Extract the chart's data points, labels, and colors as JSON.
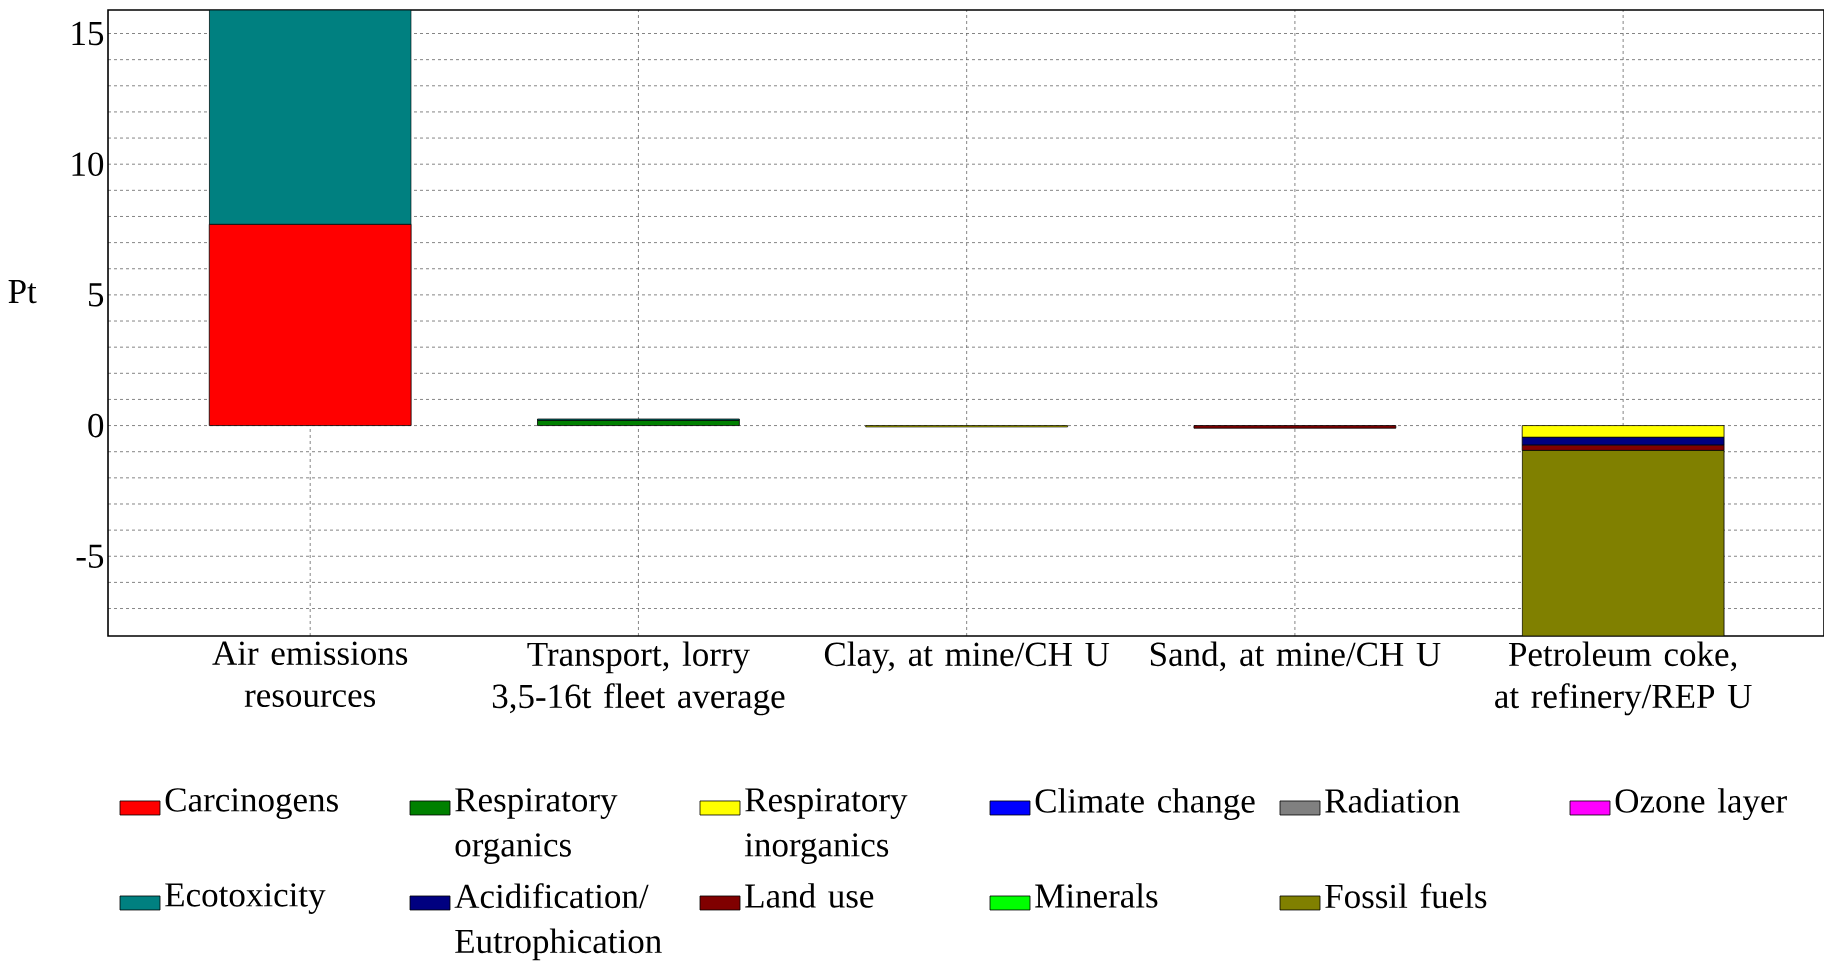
{
  "chart_data": {
    "type": "bar",
    "stacked": true,
    "ylabel": "Pt",
    "categories": [
      "Air emissions resources",
      "Transport, lorry 3,5-16t fleet average",
      "Clay, at mine/CH U",
      "Sand, at mine/CH U",
      "Petroleum coke, at refinery/REP U"
    ],
    "series": [
      {
        "name": "Carcinogens",
        "color": "#ff0000",
        "values": [
          7.7,
          null,
          null,
          null,
          null
        ]
      },
      {
        "name": "Respiratory organics",
        "color": "#008000",
        "values": [
          null,
          0.2,
          null,
          null,
          null
        ]
      },
      {
        "name": "Respiratory inorganics",
        "color": "#ffff00",
        "values": [
          null,
          null,
          -0.05,
          null,
          -0.45
        ]
      },
      {
        "name": "Climate change",
        "color": "#0000ff",
        "values": [
          null,
          null,
          null,
          null,
          null
        ]
      },
      {
        "name": "Radiation",
        "color": "#808080",
        "values": [
          null,
          null,
          null,
          null,
          null
        ]
      },
      {
        "name": "Ozone layer",
        "color": "#ff00ff",
        "values": [
          null,
          null,
          null,
          null,
          null
        ]
      },
      {
        "name": "Ecotoxicity",
        "color": "#008080",
        "values": [
          8.2,
          0.05,
          null,
          null,
          null
        ]
      },
      {
        "name": "Acidification/ Eutrophication",
        "color": "#000080",
        "values": [
          null,
          null,
          null,
          null,
          -0.3
        ]
      },
      {
        "name": "Land use",
        "color": "#800000",
        "values": [
          null,
          null,
          null,
          -0.1,
          -0.2
        ]
      },
      {
        "name": "Minerals",
        "color": "#00ff00",
        "values": [
          null,
          null,
          null,
          null,
          null
        ]
      },
      {
        "name": "Fossil fuels",
        "color": "#808000",
        "values": [
          null,
          null,
          null,
          null,
          -7.1
        ]
      }
    ],
    "ylim": [
      -8.05,
      15.9
    ],
    "yticks": [
      {
        "value": -7,
        "label": null
      },
      {
        "value": -6,
        "label": null
      },
      -5,
      {
        "value": -4,
        "label": null
      },
      {
        "value": -3,
        "label": null
      },
      {
        "value": -2,
        "label": null
      },
      {
        "value": -1,
        "label": null
      },
      0,
      {
        "value": 1,
        "label": null
      },
      {
        "value": 2,
        "label": null
      },
      {
        "value": 3,
        "label": null
      },
      {
        "value": 4,
        "label": null
      },
      5,
      {
        "value": 6,
        "label": null
      },
      {
        "value": 7,
        "label": null
      },
      {
        "value": 8,
        "label": null
      },
      {
        "value": 9,
        "label": null
      },
      10,
      {
        "value": 11,
        "label": null
      },
      {
        "value": 12,
        "label": null
      },
      {
        "value": 13,
        "label": null
      },
      {
        "value": 14,
        "label": null
      },
      15
    ],
    "grid": true,
    "legend": "bottom"
  }
}
